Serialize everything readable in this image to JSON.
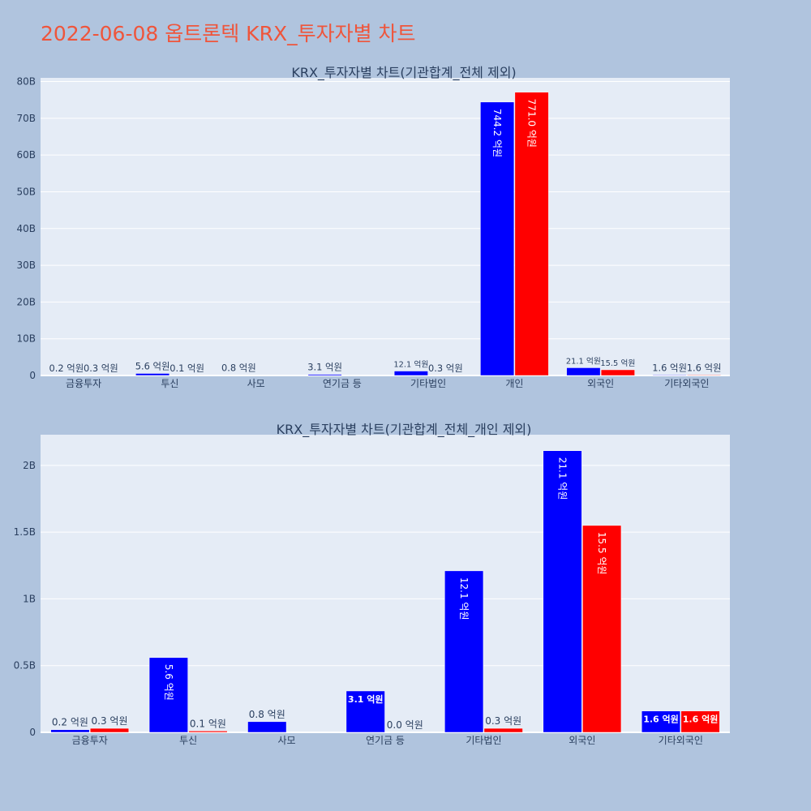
{
  "page": {
    "title": "2022-06-08 옵트론텍 KRX_투자자별 차트"
  },
  "colors": {
    "buy": "#0000ff",
    "sell": "#ff0000",
    "plot_bg": "#e5ecf6",
    "page_bg": "#b0c4de",
    "title": "#ef553b"
  },
  "chart_data": [
    {
      "type": "bar",
      "title": "KRX_투자자별 차트(기관합계_전체 제외)",
      "categories": [
        "금융투자",
        "투신",
        "사모",
        "연기금 등",
        "기타법인",
        "개인",
        "외국인",
        "기타외국인"
      ],
      "ylim": [
        0,
        81000000000
      ],
      "yticks": [
        0,
        10000000000,
        20000000000,
        30000000000,
        40000000000,
        50000000000,
        60000000000,
        70000000000,
        80000000000
      ],
      "ytick_labels": [
        "0",
        "10B",
        "20B",
        "30B",
        "40B",
        "50B",
        "60B",
        "70B",
        "80B"
      ],
      "grid": true,
      "series": [
        {
          "color": "#0000ff",
          "values": [
            20000000,
            560000000,
            80000000,
            310000000,
            1210000000,
            74420000000,
            2110000000,
            160000000
          ],
          "labels": [
            "0.2 억원",
            "5.6 억원",
            "0.8 억원",
            "3.1 억원",
            "12.1 억원",
            "744.2 억원",
            "21.1 억원",
            "1.6 억원"
          ]
        },
        {
          "color": "#ff0000",
          "values": [
            30000000,
            10000000,
            null,
            null,
            30000000,
            77100000000,
            1550000000,
            160000000
          ],
          "labels": [
            "0.3 억원",
            "0.1 억원",
            "",
            "",
            "0.3 억원",
            "771.0 억원",
            "15.5 억원",
            "1.6 억원"
          ]
        }
      ]
    },
    {
      "type": "bar",
      "title": "KRX_투자자별 차트(기관합계_전체_개인 제외)",
      "categories": [
        "금융투자",
        "투신",
        "사모",
        "연기금 등",
        "기타법인",
        "외국인",
        "기타외국인"
      ],
      "ylim": [
        0,
        2230000000
      ],
      "yticks": [
        0,
        500000000,
        1000000000,
        1500000000,
        2000000000
      ],
      "ytick_labels": [
        "0",
        "0.5B",
        "1B",
        "1.5B",
        "2B"
      ],
      "grid": true,
      "series": [
        {
          "color": "#0000ff",
          "values": [
            20000000,
            560000000,
            80000000,
            310000000,
            1210000000,
            2110000000,
            160000000
          ],
          "labels": [
            "0.2 억원",
            "5.6 억원",
            "0.8 억원",
            "3.1 억원",
            "12.1 억원",
            "21.1 억원",
            "1.6 억원"
          ]
        },
        {
          "color": "#ff0000",
          "values": [
            30000000,
            10000000,
            null,
            0,
            30000000,
            1550000000,
            160000000
          ],
          "labels": [
            "0.3 억원",
            "0.1 억원",
            "",
            "0.0 억원",
            "0.3 억원",
            "15.5 억원",
            "1.6 억원"
          ]
        }
      ]
    }
  ]
}
